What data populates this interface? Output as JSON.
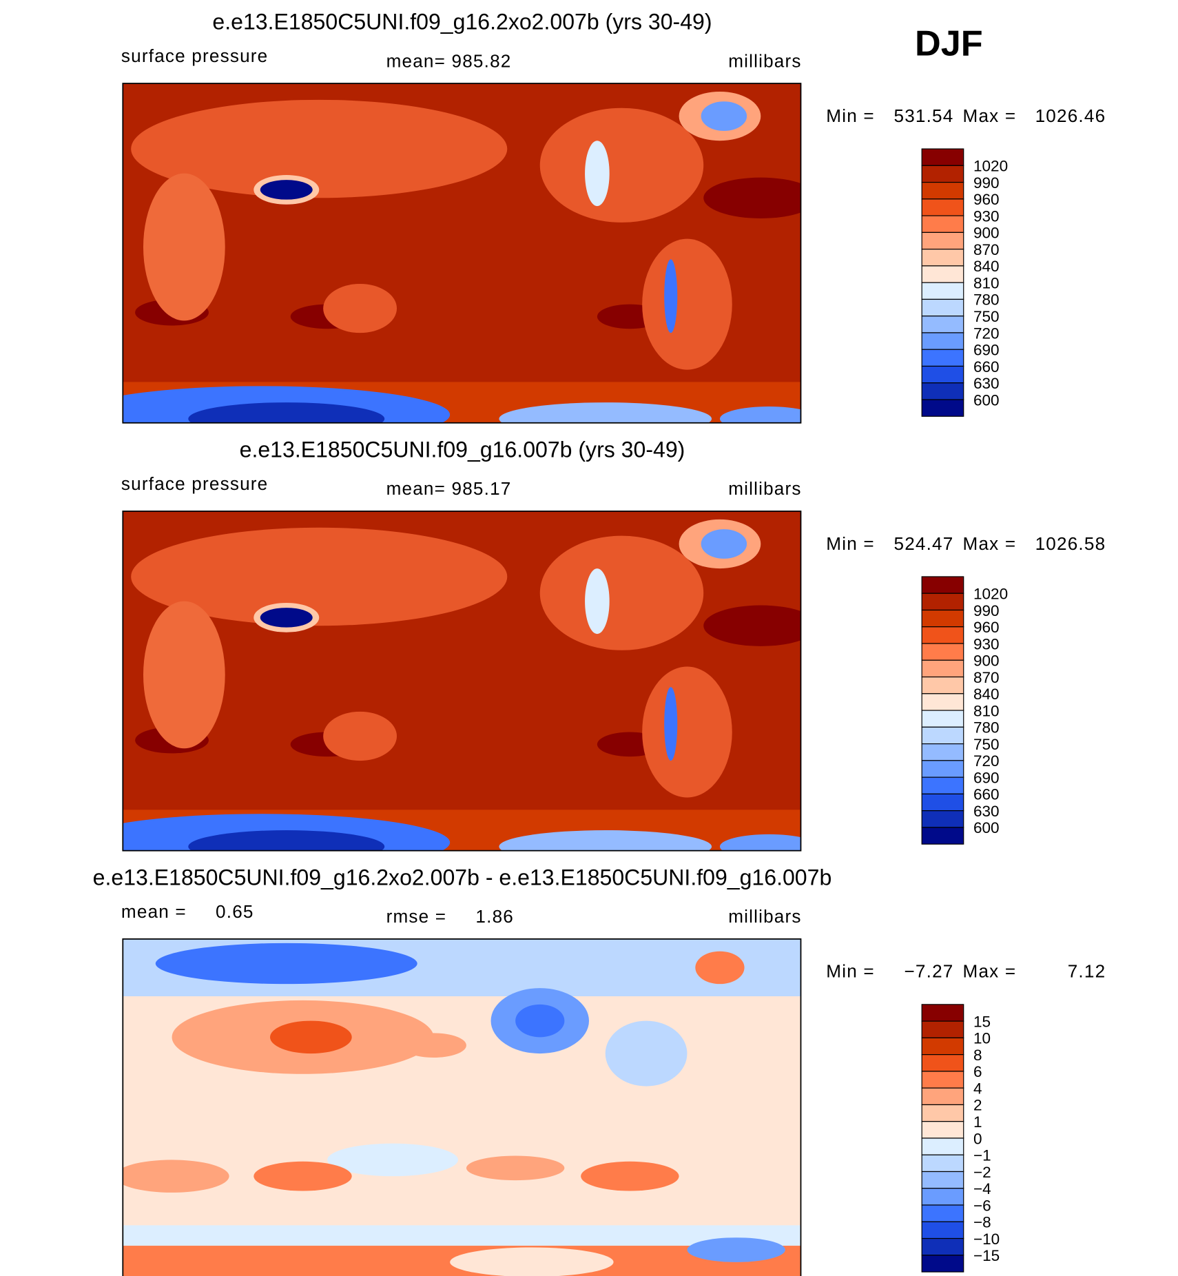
{
  "header": {
    "season": "DJF"
  },
  "panels": [
    {
      "title": "e.e13.E1850C5UNI.f09_g16.2xo2.007b (yrs 30-49)",
      "left": "surface pressure",
      "center": "mean= 985.82",
      "right": "millibars",
      "min_label": "Min =",
      "min": "531.54",
      "max_label": "Max =",
      "max": "1026.46",
      "colorbar": {
        "labels": [
          "1020",
          "990",
          "960",
          "930",
          "900",
          "870",
          "840",
          "810",
          "780",
          "750",
          "720",
          "690",
          "660",
          "630",
          "600"
        ],
        "colors": [
          "#870000",
          "#b22200",
          "#d23a00",
          "#f0531a",
          "#ff7c4a",
          "#ffa47c",
          "#ffc8a8",
          "#ffe6d6",
          "#dceeff",
          "#bcd8ff",
          "#94bbff",
          "#6a9cff",
          "#3c74ff",
          "#1f4fe6",
          "#0f2fb8",
          "#000a8a"
        ]
      }
    },
    {
      "title": "e.e13.E1850C5UNI.f09_g16.007b (yrs 30-49)",
      "left": "surface pressure",
      "center": "mean= 985.17",
      "right": "millibars",
      "min_label": "Min =",
      "min": "524.47",
      "max_label": "Max =",
      "max": "1026.58",
      "colorbar": {
        "labels": [
          "1020",
          "990",
          "960",
          "930",
          "900",
          "870",
          "840",
          "810",
          "780",
          "750",
          "720",
          "690",
          "660",
          "630",
          "600"
        ],
        "colors": [
          "#870000",
          "#b22200",
          "#d23a00",
          "#f0531a",
          "#ff7c4a",
          "#ffa47c",
          "#ffc8a8",
          "#ffe6d6",
          "#dceeff",
          "#bcd8ff",
          "#94bbff",
          "#6a9cff",
          "#3c74ff",
          "#1f4fe6",
          "#0f2fb8",
          "#000a8a"
        ]
      }
    },
    {
      "title": "e.e13.E1850C5UNI.f09_g16.2xo2.007b - e.e13.E1850C5UNI.f09_g16.007b",
      "left": "mean =     0.65",
      "center": "rmse =     1.86",
      "right": "millibars",
      "min_label": "Min =",
      "min": "−7.27",
      "max_label": "Max =",
      "max": "7.12",
      "colorbar": {
        "labels": [
          "15",
          "10",
          "8",
          "6",
          "4",
          "2",
          "1",
          "0",
          "−1",
          "−2",
          "−4",
          "−6",
          "−8",
          "−10",
          "−15"
        ],
        "colors": [
          "#870000",
          "#b22200",
          "#d23a00",
          "#f0531a",
          "#ff7c4a",
          "#ffa47c",
          "#ffc8a8",
          "#ffe6d6",
          "#dceeff",
          "#bcd8ff",
          "#94bbff",
          "#6a9cff",
          "#3c74ff",
          "#1f4fe6",
          "#0f2fb8",
          "#000a8a"
        ]
      }
    }
  ]
}
